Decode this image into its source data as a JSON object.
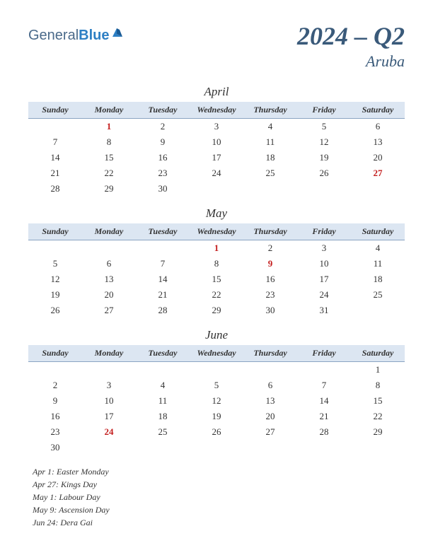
{
  "logo": {
    "part1": "General",
    "part2": "Blue"
  },
  "title": "2024 – Q2",
  "subtitle": "Aruba",
  "day_headers": [
    "Sunday",
    "Monday",
    "Tuesday",
    "Wednesday",
    "Thursday",
    "Friday",
    "Saturday"
  ],
  "colors": {
    "header_bg": "#dce6f2",
    "header_border": "#8aa4c2",
    "title_color": "#3a5a7a",
    "holiday_color": "#c41e1e",
    "logo_general": "#4a6a8a",
    "logo_blue": "#2d7fc4"
  },
  "months": [
    {
      "name": "April",
      "weeks": [
        [
          null,
          {
            "d": 1,
            "h": true
          },
          {
            "d": 2
          },
          {
            "d": 3
          },
          {
            "d": 4
          },
          {
            "d": 5
          },
          {
            "d": 6
          }
        ],
        [
          {
            "d": 7
          },
          {
            "d": 8
          },
          {
            "d": 9
          },
          {
            "d": 10
          },
          {
            "d": 11
          },
          {
            "d": 12
          },
          {
            "d": 13
          }
        ],
        [
          {
            "d": 14
          },
          {
            "d": 15
          },
          {
            "d": 16
          },
          {
            "d": 17
          },
          {
            "d": 18
          },
          {
            "d": 19
          },
          {
            "d": 20
          }
        ],
        [
          {
            "d": 21
          },
          {
            "d": 22
          },
          {
            "d": 23
          },
          {
            "d": 24
          },
          {
            "d": 25
          },
          {
            "d": 26
          },
          {
            "d": 27,
            "h": true
          }
        ],
        [
          {
            "d": 28
          },
          {
            "d": 29
          },
          {
            "d": 30
          },
          null,
          null,
          null,
          null
        ]
      ]
    },
    {
      "name": "May",
      "weeks": [
        [
          null,
          null,
          null,
          {
            "d": 1,
            "h": true
          },
          {
            "d": 2
          },
          {
            "d": 3
          },
          {
            "d": 4
          }
        ],
        [
          {
            "d": 5
          },
          {
            "d": 6
          },
          {
            "d": 7
          },
          {
            "d": 8
          },
          {
            "d": 9,
            "h": true
          },
          {
            "d": 10
          },
          {
            "d": 11
          }
        ],
        [
          {
            "d": 12
          },
          {
            "d": 13
          },
          {
            "d": 14
          },
          {
            "d": 15
          },
          {
            "d": 16
          },
          {
            "d": 17
          },
          {
            "d": 18
          }
        ],
        [
          {
            "d": 19
          },
          {
            "d": 20
          },
          {
            "d": 21
          },
          {
            "d": 22
          },
          {
            "d": 23
          },
          {
            "d": 24
          },
          {
            "d": 25
          }
        ],
        [
          {
            "d": 26
          },
          {
            "d": 27
          },
          {
            "d": 28
          },
          {
            "d": 29
          },
          {
            "d": 30
          },
          {
            "d": 31
          },
          null
        ]
      ]
    },
    {
      "name": "June",
      "weeks": [
        [
          null,
          null,
          null,
          null,
          null,
          null,
          {
            "d": 1
          }
        ],
        [
          {
            "d": 2
          },
          {
            "d": 3
          },
          {
            "d": 4
          },
          {
            "d": 5
          },
          {
            "d": 6
          },
          {
            "d": 7
          },
          {
            "d": 8
          }
        ],
        [
          {
            "d": 9
          },
          {
            "d": 10
          },
          {
            "d": 11
          },
          {
            "d": 12
          },
          {
            "d": 13
          },
          {
            "d": 14
          },
          {
            "d": 15
          }
        ],
        [
          {
            "d": 16
          },
          {
            "d": 17
          },
          {
            "d": 18
          },
          {
            "d": 19
          },
          {
            "d": 20
          },
          {
            "d": 21
          },
          {
            "d": 22
          }
        ],
        [
          {
            "d": 23
          },
          {
            "d": 24,
            "h": true
          },
          {
            "d": 25
          },
          {
            "d": 26
          },
          {
            "d": 27
          },
          {
            "d": 28
          },
          {
            "d": 29
          }
        ],
        [
          {
            "d": 30
          },
          null,
          null,
          null,
          null,
          null,
          null
        ]
      ]
    }
  ],
  "holidays": [
    "Apr 1: Easter Monday",
    "Apr 27: Kings Day",
    "May 1: Labour Day",
    "May 9: Ascension Day",
    "Jun 24: Dera Gai"
  ]
}
